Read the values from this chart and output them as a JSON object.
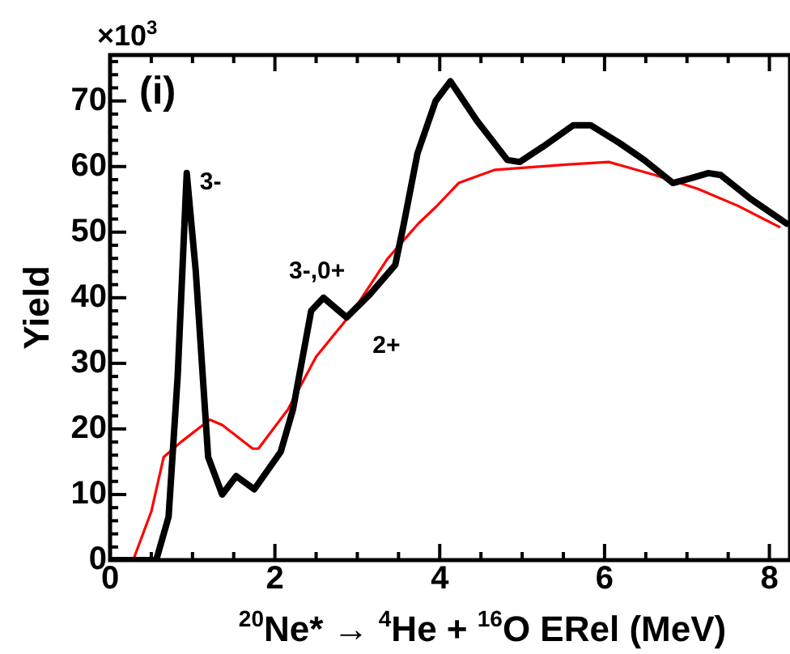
{
  "chart_data": {
    "type": "line",
    "xlabel": "$^{20}$Ne* → $^{4}$He + $^{16}$O ERel (MeV)",
    "ylabel": "Yield",
    "xlim": [
      0,
      8.25
    ],
    "xticks": [
      0,
      2,
      4,
      6,
      8
    ],
    "ylim": [
      0,
      77
    ],
    "yticks": [
      0,
      10,
      20,
      30,
      40,
      50,
      60,
      70
    ],
    "grid": false,
    "legend": false,
    "marker": "none",
    "line_style": "solid",
    "annotations": [
      "(i)",
      "×10$^{3}$",
      {
        "text": "3-",
        "x": 0.93,
        "y": 59
      },
      {
        "text": "3-,0+",
        "x": 2.59,
        "y": 40
      },
      {
        "text": "2+",
        "x": 2.87,
        "y": 37
      }
    ],
    "series": [
      {
        "color": "#000000",
        "x": [
          0,
          0.3,
          0.56,
          0.71,
          0.82,
          0.93,
          1.04,
          1.19,
          1.36,
          1.53,
          1.75,
          2.07,
          2.22,
          2.44,
          2.59,
          2.87,
          3.15,
          3.46,
          3.56,
          3.73,
          3.95,
          4.13,
          4.45,
          4.82,
          4.97,
          5.25,
          5.62,
          5.83,
          6.18,
          6.48,
          6.83,
          7.04,
          7.26,
          7.41,
          7.78,
          8.21
        ],
        "values": [
          0,
          0,
          0,
          6.6,
          28,
          59,
          44,
          15.7,
          10,
          12.8,
          10.8,
          16.5,
          23,
          38,
          40,
          37,
          40.5,
          45,
          51,
          62,
          70,
          73,
          67,
          61,
          60.7,
          63,
          66.3,
          66.3,
          63.6,
          61,
          57.5,
          58.2,
          59,
          58.7,
          55,
          51.3
        ]
      },
      {
        "color": "#ff0000",
        "x": [
          0,
          0.28,
          0.5,
          0.65,
          0.86,
          1.21,
          1.36,
          1.73,
          1.8,
          2.16,
          2.5,
          2.94,
          3.37,
          3.74,
          3.95,
          4.23,
          4.67,
          5.53,
          6.05,
          6.61,
          7.13,
          7.62,
          8.12
        ],
        "values": [
          0,
          0,
          7.4,
          15.7,
          18,
          21.4,
          20.6,
          17,
          17,
          23,
          31,
          37.8,
          46,
          51.3,
          53.8,
          57.5,
          59.5,
          60.3,
          60.7,
          58.7,
          56.6,
          54,
          50.8
        ]
      }
    ]
  }
}
